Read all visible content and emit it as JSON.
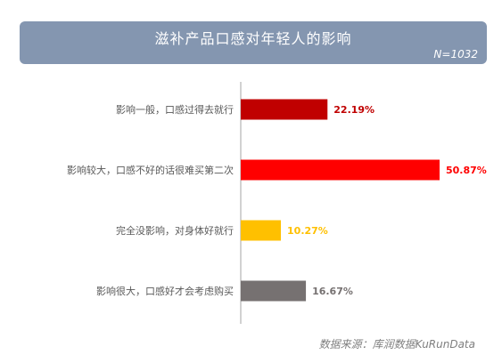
{
  "chart_data": {
    "type": "bar",
    "orientation": "horizontal",
    "title": "滋补产品口感对年轻人的影响",
    "sample_size": "N=1032",
    "categories": [
      "影响一般，口感过得去就行",
      "影响较大，口感不好的话很难买第二次",
      "完全没影响，对身体好就行",
      "影响很大，口感好才会考虑购买"
    ],
    "values": [
      22.19,
      50.87,
      10.27,
      16.67
    ],
    "value_labels": [
      "22.19%",
      "50.87%",
      "10.27%",
      "16.67%"
    ],
    "colors": [
      "#c00000",
      "#ff0000",
      "#ffc000",
      "#767171"
    ],
    "xlim": [
      0,
      50.87
    ],
    "grid": false,
    "legend": "none"
  },
  "source": "数据来源：库润数据KuRunData"
}
